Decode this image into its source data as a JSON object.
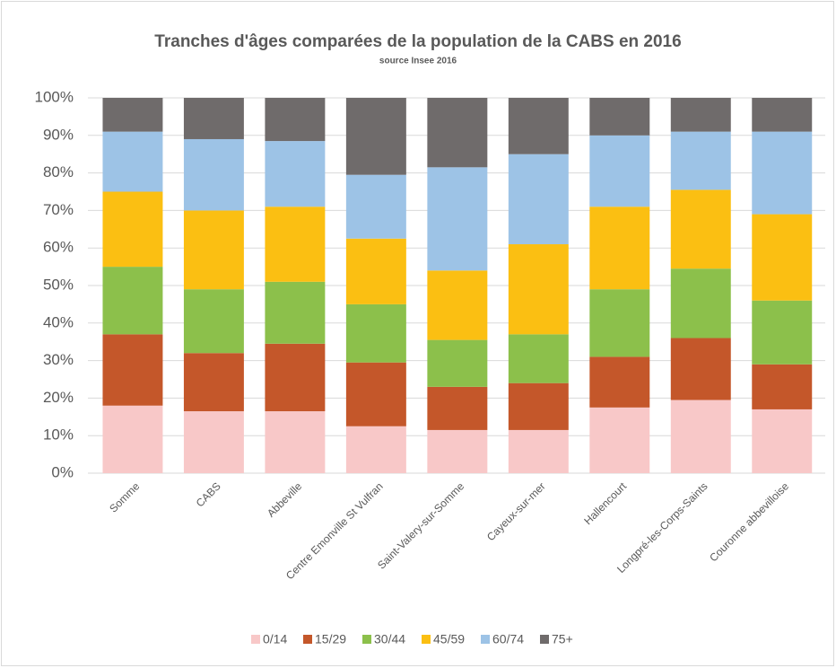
{
  "chart_data": {
    "type": "stacked_bar_percent",
    "title": "Tranches d'âges comparées de la population de la CABS en 2016",
    "subtitle": "source Insee 2016",
    "categories": [
      "Somme",
      "CABS",
      "Abbeville",
      "Centre Emonville St Vulfran",
      "Saint-Valery-sur-Somme",
      "Cayeux-sur-mer",
      "Hallencourt",
      "Longpré-les-Corps-Saints",
      "Couronne abbevilloise"
    ],
    "series": [
      {
        "name": "0/14",
        "color": "#f8c8c8",
        "values": [
          18,
          16.5,
          16.5,
          12.5,
          11.5,
          11.5,
          17.5,
          19.5,
          17
        ]
      },
      {
        "name": "15/29",
        "color": "#c4572a",
        "values": [
          19,
          15.5,
          18,
          17,
          11.5,
          12.5,
          13.5,
          16.5,
          12
        ]
      },
      {
        "name": "30/44",
        "color": "#8cc04b",
        "values": [
          18,
          17,
          16.5,
          15.5,
          12.5,
          13,
          18,
          18.5,
          17
        ]
      },
      {
        "name": "45/59",
        "color": "#fbbf12",
        "values": [
          20,
          21,
          20,
          17.5,
          18.5,
          24,
          22,
          21,
          23
        ]
      },
      {
        "name": "60/74",
        "color": "#9dc3e6",
        "values": [
          16,
          19,
          17.5,
          17,
          27.5,
          24,
          19,
          15.5,
          22
        ]
      },
      {
        "name": "75+",
        "color": "#6f6b6b",
        "values": [
          9,
          11,
          11.5,
          20.5,
          18.5,
          15,
          10,
          9,
          9
        ]
      }
    ],
    "ylim": [
      0,
      100
    ],
    "yticks": [
      {
        "value": 0,
        "label": "0%"
      },
      {
        "value": 10,
        "label": "10%"
      },
      {
        "value": 20,
        "label": "20%"
      },
      {
        "value": 30,
        "label": "30%"
      },
      {
        "value": 40,
        "label": "40%"
      },
      {
        "value": 50,
        "label": "50%"
      },
      {
        "value": 60,
        "label": "60%"
      },
      {
        "value": 70,
        "label": "70%"
      },
      {
        "value": 80,
        "label": "80%"
      },
      {
        "value": 90,
        "label": "90%"
      },
      {
        "value": 100,
        "label": "100%"
      }
    ],
    "grid": true,
    "legend": "bottom"
  }
}
